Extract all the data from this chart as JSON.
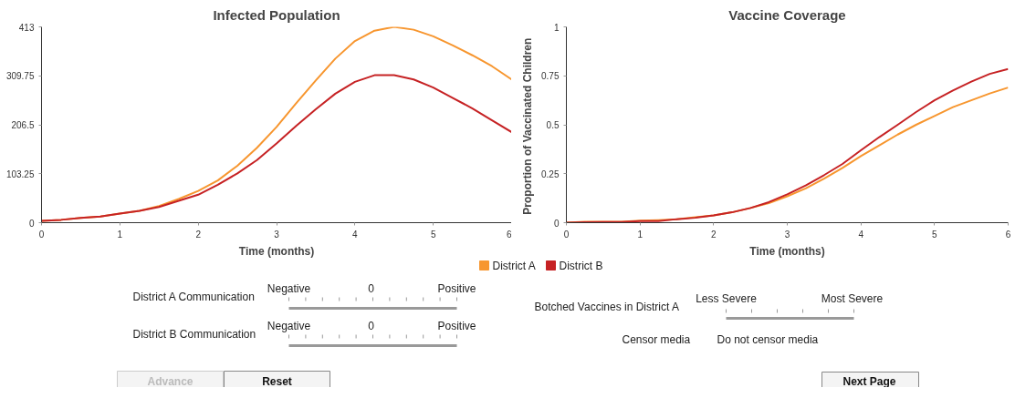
{
  "chart_data": [
    {
      "type": "line",
      "title": "Infected Population",
      "xlabel": "Time (months)",
      "x": [
        0,
        0.25,
        0.5,
        0.75,
        1,
        1.25,
        1.5,
        1.75,
        2,
        2.25,
        2.5,
        2.75,
        3,
        3.25,
        3.5,
        3.75,
        4,
        4.25,
        4.5,
        4.75,
        5,
        5.25,
        5.5,
        5.75,
        6
      ],
      "series": [
        {
          "name": "District A",
          "color": "#f7962f",
          "values": [
            4,
            6,
            10,
            13,
            19,
            25,
            35,
            50,
            67,
            89,
            120,
            158,
            202,
            252,
            300,
            346,
            383,
            405,
            413,
            407,
            393,
            374,
            353,
            330,
            302
          ]
        },
        {
          "name": "District B",
          "color": "#c62224",
          "values": [
            4,
            6,
            10,
            13,
            19,
            25,
            33,
            46,
            59,
            80,
            104,
            132,
            167,
            204,
            239,
            272,
            297,
            311,
            311,
            302,
            285,
            263,
            241,
            216,
            191
          ]
        }
      ],
      "xlim": [
        0,
        6
      ],
      "xticks": [
        0,
        1,
        2,
        3,
        4,
        5,
        6
      ],
      "ylim": [
        0,
        413
      ],
      "yticks": [
        0,
        103.25,
        206.5,
        309.75,
        413
      ],
      "grid": false,
      "legend": "bottom right"
    },
    {
      "type": "line",
      "title": "Vaccine Coverage",
      "xlabel": "Time (months)",
      "ylabel": "Proportion of  Vaccinated Children",
      "x": [
        0,
        0.25,
        0.5,
        0.75,
        1,
        1.25,
        1.5,
        1.75,
        2,
        2.25,
        2.5,
        2.75,
        3,
        3.25,
        3.5,
        3.75,
        4,
        4.25,
        4.5,
        4.75,
        5,
        5.25,
        5.5,
        5.75,
        6
      ],
      "series": [
        {
          "color": "#f7962f",
          "values": [
            0,
            0.005,
            0.005,
            0.005,
            0.01,
            0.013,
            0.018,
            0.028,
            0.037,
            0.053,
            0.075,
            0.1,
            0.135,
            0.175,
            0.225,
            0.28,
            0.34,
            0.395,
            0.45,
            0.5,
            0.545,
            0.59,
            0.625,
            0.66,
            0.69
          ]
        },
        {
          "color": "#c62224",
          "values": [
            0,
            0.002,
            0.003,
            0.003,
            0.008,
            0.008,
            0.018,
            0.025,
            0.037,
            0.053,
            0.075,
            0.105,
            0.145,
            0.19,
            0.243,
            0.3,
            0.37,
            0.437,
            0.5,
            0.565,
            0.625,
            0.675,
            0.72,
            0.76,
            0.785
          ]
        }
      ],
      "xlim": [
        0,
        6
      ],
      "xticks": [
        0,
        1,
        2,
        3,
        4,
        5,
        6
      ],
      "ylim": [
        0,
        1
      ],
      "yticks": [
        0,
        0.25,
        0.5,
        0.75,
        1
      ],
      "grid": false
    },
    {
      "type": "other",
      "annotations": [
        "District A Communication",
        "Negative",
        "0",
        "Positive",
        "District B Communication",
        "Negative",
        "0",
        "Positive",
        "Advance",
        "Reset",
        "Botched Vaccines in District A",
        "Less Severe",
        "Most Severe",
        "Censor media",
        "Do not censor media",
        "Next Page"
      ]
    }
  ]
}
